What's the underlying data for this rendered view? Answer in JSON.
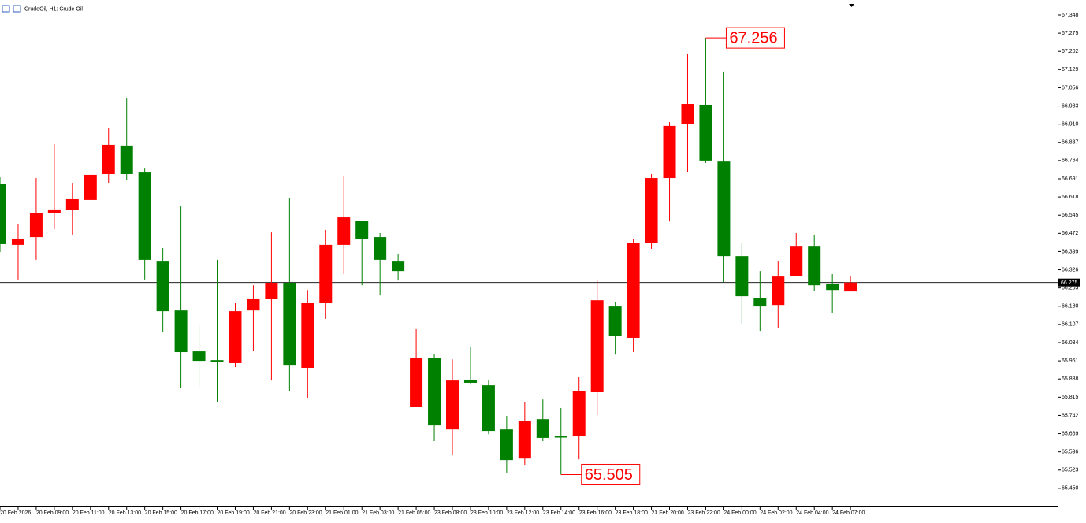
{
  "chart_data": {
    "type": "candlestick",
    "title": "CrudeOil, H1:  Crude Oil",
    "categories": [
      "20 Feb 2026",
      null,
      "20 Feb 09:00",
      null,
      "20 Feb 11:00",
      null,
      "20 Feb 13:00",
      null,
      "20 Feb 15:00",
      null,
      "20 Feb 17:00",
      null,
      "20 Feb 19:00",
      null,
      "20 Feb 21:00",
      null,
      "20 Feb 23:00",
      null,
      "21 Feb 01:00",
      null,
      "21 Feb 03:00",
      null,
      "21 Feb 05:00",
      null,
      "23 Feb 08:00",
      null,
      "23 Feb 10:00",
      null,
      "23 Feb 12:00",
      null,
      "23 Feb 14:00",
      null,
      "23 Feb 16:00",
      null,
      "23 Feb 18:00",
      null,
      "23 Feb 20:00",
      null,
      "23 Feb 22:00",
      null,
      "24 Feb 00:00",
      null,
      "24 Feb 02:00",
      null,
      "24 Feb 04:00",
      null,
      "24 Feb 07:00",
      null
    ],
    "open": [
      66.669,
      66.426,
      66.457,
      66.555,
      66.565,
      66.606,
      66.71,
      66.824,
      66.716,
      66.359,
      66.163,
      65.999,
      65.964,
      65.952,
      66.163,
      66.208,
      66.274,
      65.933,
      66.192,
      66.426,
      66.523,
      66.457,
      66.359,
      65.775,
      65.974,
      65.686,
      65.885,
      65.863,
      65.686,
      65.569,
      65.727,
      65.658,
      65.658,
      65.835,
      66.179,
      66.053,
      66.432,
      66.694,
      66.912,
      66.988,
      66.76,
      66.381,
      66.214,
      66.185,
      66.302,
      66.422,
      66.271,
      66.239
    ],
    "high": [
      66.697,
      66.508,
      66.694,
      66.83,
      66.675,
      66.707,
      66.893,
      67.013,
      66.735,
      66.413,
      66.58,
      66.103,
      66.366,
      66.192,
      66.264,
      66.476,
      66.615,
      66.245,
      66.486,
      66.704,
      66.523,
      66.473,
      66.391,
      66.088,
      65.99,
      65.967,
      66.018,
      65.882,
      65.74,
      65.794,
      65.806,
      65.772,
      65.895,
      66.287,
      66.198,
      66.451,
      66.71,
      66.918,
      67.19,
      67.256,
      67.121,
      66.435,
      66.321,
      66.362,
      66.473,
      66.467,
      66.309,
      66.299
    ],
    "low": [
      66.397,
      66.287,
      66.366,
      66.489,
      66.467,
      66.606,
      66.675,
      66.685,
      66.287,
      66.075,
      65.854,
      65.857,
      65.794,
      65.936,
      66.002,
      65.882,
      65.841,
      65.813,
      66.129,
      66.309,
      66.264,
      66.223,
      66.283,
      65.775,
      65.639,
      65.582,
      65.866,
      65.667,
      65.513,
      65.544,
      65.639,
      65.505,
      65.566,
      65.743,
      65.986,
      65.996,
      66.41,
      66.52,
      66.719,
      66.754,
      66.277,
      66.11,
      66.081,
      66.091,
      66.302,
      66.242,
      66.151,
      66.239
    ],
    "close": [
      66.429,
      66.451,
      66.555,
      66.568,
      66.609,
      66.707,
      66.827,
      66.71,
      66.366,
      66.16,
      65.996,
      65.961,
      65.955,
      66.16,
      66.211,
      66.274,
      65.942,
      66.192,
      66.426,
      66.536,
      66.451,
      66.366,
      66.321,
      65.974,
      65.702,
      65.882,
      65.873,
      65.68,
      65.563,
      65.721,
      65.652,
      65.655,
      65.841,
      66.204,
      66.062,
      66.432,
      66.694,
      66.903,
      66.991,
      66.764,
      66.381,
      66.22,
      66.179,
      66.299,
      66.422,
      66.264,
      66.245,
      66.275
    ],
    "up_color": "#ff0000",
    "down_color": "#008000",
    "ylim": [
      65.377,
      67.408
    ],
    "yticks": [
      67.348,
      67.275,
      67.202,
      67.129,
      67.056,
      66.983,
      {
        "value": 66.91,
        "label": "66.910"
      },
      66.837,
      66.764,
      66.691,
      66.618,
      66.545,
      66.472,
      66.399,
      66.326,
      66.253,
      {
        "value": 66.18,
        "label": "66.180"
      },
      66.107,
      66.034,
      65.961,
      65.888,
      65.815,
      65.742,
      65.669,
      65.596,
      65.523,
      {
        "value": 65.45,
        "label": "65.450"
      }
    ],
    "grid": false,
    "current_price": 66.275,
    "max_label": 67.256,
    "min_label": 65.505
  }
}
